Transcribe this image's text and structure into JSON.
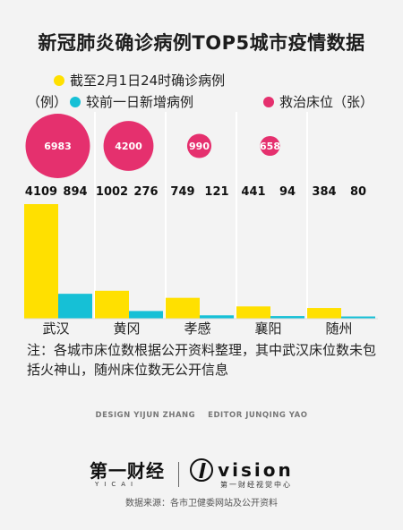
{
  "title": "新冠肺炎确诊病例TOP5城市疫情数据",
  "legend": {
    "confirmed_label": "截至2月1日24时确诊病例",
    "unit_label": "（例）",
    "new_label": "较前一日新增病例",
    "beds_label": "救治床位（张）"
  },
  "colors": {
    "confirmed": "#FFE000",
    "new": "#16C0D6",
    "beds": "#E5306E",
    "divider": "#ffffff"
  },
  "chart_data": {
    "type": "bar",
    "categories": [
      "武汉",
      "黄冈",
      "孝感",
      "襄阳",
      "随州"
    ],
    "series": [
      {
        "name": "截至2月1日24时确诊病例",
        "values": [
          4109,
          1002,
          749,
          441,
          384
        ]
      },
      {
        "name": "较前一日新增病例",
        "values": [
          894,
          276,
          121,
          94,
          80
        ]
      }
    ],
    "bubbles": {
      "name": "救治床位（张）",
      "values": [
        6983,
        4200,
        990,
        658,
        null
      ]
    },
    "title": "新冠肺炎确诊病例TOP5城市疫情数据",
    "xlabel": "",
    "ylabel": "",
    "ylim": [
      0,
      4109
    ],
    "grid": false,
    "legend": "top"
  },
  "note": "注：各城市床位数根据公开资料整理，其中武汉床位数未包括火神山，随州床位数无公开信息",
  "credits": {
    "design": "DESIGN YIJUN ZHANG",
    "editor": "EDITOR JUNQING YAO"
  },
  "logos": {
    "yicai_main": "第一财经",
    "yicai_sub": "YICAI",
    "vision_main": "vision",
    "vision_sub": "第一财经视觉中心"
  },
  "source": "数据来源：各市卫健委网站及公开资料"
}
